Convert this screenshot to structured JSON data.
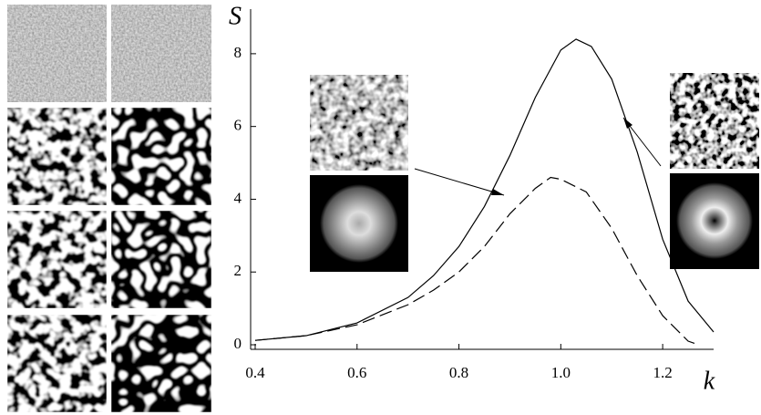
{
  "chart_data": {
    "type": "line",
    "y_label": "S",
    "x_label": "k",
    "xlim": [
      0.4,
      1.3
    ],
    "ylim": [
      0,
      9
    ],
    "xticks": [
      0.4,
      0.6,
      0.8,
      {
        "value": 1,
        "label": "1.0"
      },
      1.2
    ],
    "yticks": [
      0,
      2,
      4,
      6,
      8
    ],
    "series": [
      {
        "color": "#000000",
        "dash": false,
        "x": [
          0.4,
          0.5,
          0.6,
          0.7,
          0.75,
          0.8,
          0.85,
          0.9,
          0.95,
          1.0,
          1.03,
          1.06,
          1.1,
          1.15,
          1.2,
          1.25,
          1.3
        ],
        "values": [
          0.12,
          0.25,
          0.6,
          1.3,
          1.9,
          2.7,
          3.8,
          5.2,
          6.8,
          8.1,
          8.4,
          8.2,
          7.3,
          5.3,
          2.9,
          1.2,
          0.35
        ]
      },
      {
        "color": "#000000",
        "dash": true,
        "x": [
          0.4,
          0.5,
          0.6,
          0.7,
          0.75,
          0.8,
          0.85,
          0.9,
          0.95,
          0.98,
          1.0,
          1.05,
          1.1,
          1.15,
          1.2,
          1.25,
          1.27
        ],
        "values": [
          0.12,
          0.25,
          0.55,
          1.1,
          1.5,
          2.0,
          2.7,
          3.6,
          4.3,
          4.6,
          4.55,
          4.2,
          3.2,
          1.9,
          0.8,
          0.1,
          0
        ]
      }
    ]
  }
}
